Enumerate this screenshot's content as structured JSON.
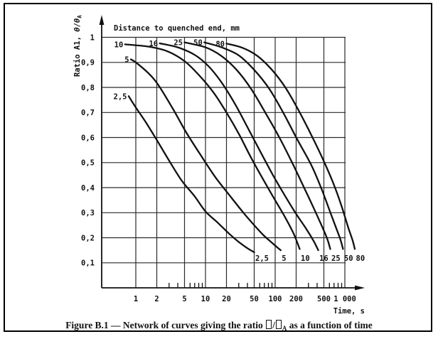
{
  "figure": {
    "caption": {
      "lead": "Figure B.1 — Network of curves giving the ratio",
      "slash": "/",
      "subscript": "A",
      "tail": "as a function of time",
      "missing_glyph": "tofu-box"
    }
  },
  "chart_data": {
    "type": "line",
    "title": "Distance to quenched end, mm",
    "xlabel": "Time, s",
    "ylabel": "Ratio A1, θ/θA",
    "ylabel_parts": {
      "prefix": "Ratio A1, ",
      "theta": "θ",
      "slash": "/",
      "subscript": "A"
    },
    "x_scale": "log",
    "xlim": [
      0.33,
      1000
    ],
    "ylim": [
      0,
      1
    ],
    "grid": true,
    "legend": "labels-on-curves",
    "x_ticks": [
      {
        "value": 1,
        "label": "1"
      },
      {
        "value": 2,
        "label": "2"
      },
      {
        "value": 5,
        "label": "5"
      },
      {
        "value": 10,
        "label": "10"
      },
      {
        "value": 20,
        "label": "20"
      },
      {
        "value": 50,
        "label": "50"
      },
      {
        "value": 100,
        "label": "100"
      },
      {
        "value": 200,
        "label": "200"
      },
      {
        "value": 500,
        "label": "500"
      },
      {
        "value": 1000,
        "label": "1 000"
      }
    ],
    "x_minor_ticks": [
      3,
      4,
      6,
      7,
      8,
      9,
      30,
      40,
      60,
      70,
      80,
      90,
      300,
      400,
      600,
      700,
      800,
      900
    ],
    "y_ticks": [
      {
        "value": 1.0,
        "label": "1"
      },
      {
        "value": 0.9,
        "label": "0,9"
      },
      {
        "value": 0.8,
        "label": "0,8"
      },
      {
        "value": 0.7,
        "label": "0,7"
      },
      {
        "value": 0.6,
        "label": "0,6"
      },
      {
        "value": 0.5,
        "label": "0,5"
      },
      {
        "value": 0.4,
        "label": "0,4"
      },
      {
        "value": 0.3,
        "label": "0,3"
      },
      {
        "value": 0.2,
        "label": "0,2"
      },
      {
        "value": 0.1,
        "label": "0,1"
      }
    ],
    "series": [
      {
        "name": "2,5",
        "distance_mm": 2.5,
        "points": [
          [
            0.79,
            0.765
          ],
          [
            1,
            0.72
          ],
          [
            1.4,
            0.66
          ],
          [
            2,
            0.59
          ],
          [
            2.9,
            0.515
          ],
          [
            4.5,
            0.43
          ],
          [
            7,
            0.365
          ],
          [
            10,
            0.305
          ],
          [
            15,
            0.26
          ],
          [
            22,
            0.215
          ],
          [
            30,
            0.183
          ],
          [
            40,
            0.158
          ],
          [
            50,
            0.142
          ]
        ]
      },
      {
        "name": "5",
        "distance_mm": 5,
        "points": [
          [
            0.85,
            0.912
          ],
          [
            1,
            0.9
          ],
          [
            1.5,
            0.858
          ],
          [
            2.1,
            0.81
          ],
          [
            3.4,
            0.715
          ],
          [
            5.3,
            0.62
          ],
          [
            9,
            0.52
          ],
          [
            14,
            0.44
          ],
          [
            22,
            0.37
          ],
          [
            35,
            0.3
          ],
          [
            50,
            0.25
          ],
          [
            68,
            0.21
          ],
          [
            90,
            0.18
          ],
          [
            120,
            0.15
          ]
        ]
      },
      {
        "name": "10",
        "distance_mm": 10,
        "points": [
          [
            0.7,
            0.972
          ],
          [
            1.5,
            0.963
          ],
          [
            2.8,
            0.945
          ],
          [
            5,
            0.905
          ],
          [
            8,
            0.85
          ],
          [
            13,
            0.78
          ],
          [
            20,
            0.7
          ],
          [
            30,
            0.615
          ],
          [
            44,
            0.525
          ],
          [
            65,
            0.44
          ],
          [
            95,
            0.36
          ],
          [
            140,
            0.28
          ],
          [
            185,
            0.215
          ],
          [
            225,
            0.155
          ]
        ]
      },
      {
        "name": "16",
        "distance_mm": 16,
        "points": [
          [
            2.2,
            0.976
          ],
          [
            4,
            0.96
          ],
          [
            7,
            0.93
          ],
          [
            11,
            0.885
          ],
          [
            17,
            0.82
          ],
          [
            27,
            0.73
          ],
          [
            42,
            0.63
          ],
          [
            65,
            0.53
          ],
          [
            95,
            0.445
          ],
          [
            140,
            0.365
          ],
          [
            200,
            0.295
          ],
          [
            280,
            0.235
          ],
          [
            360,
            0.185
          ],
          [
            415,
            0.15
          ]
        ]
      },
      {
        "name": "25",
        "distance_mm": 25,
        "points": [
          [
            5,
            0.98
          ],
          [
            10,
            0.96
          ],
          [
            17,
            0.925
          ],
          [
            28,
            0.87
          ],
          [
            45,
            0.795
          ],
          [
            72,
            0.7
          ],
          [
            115,
            0.6
          ],
          [
            175,
            0.5
          ],
          [
            255,
            0.405
          ],
          [
            355,
            0.32
          ],
          [
            470,
            0.245
          ],
          [
            560,
            0.195
          ],
          [
            618,
            0.155
          ]
        ]
      },
      {
        "name": "50",
        "distance_mm": 50,
        "points": [
          [
            9.6,
            0.98
          ],
          [
            17,
            0.96
          ],
          [
            30,
            0.928
          ],
          [
            50,
            0.87
          ],
          [
            82,
            0.795
          ],
          [
            130,
            0.7
          ],
          [
            205,
            0.595
          ],
          [
            330,
            0.49
          ],
          [
            470,
            0.39
          ],
          [
            620,
            0.3
          ],
          [
            760,
            0.235
          ],
          [
            870,
            0.19
          ],
          [
            940,
            0.155
          ]
        ]
      },
      {
        "name": "80",
        "distance_mm": 80,
        "points": [
          [
            20,
            0.975
          ],
          [
            34,
            0.958
          ],
          [
            56,
            0.925
          ],
          [
            90,
            0.87
          ],
          [
            140,
            0.8
          ],
          [
            215,
            0.71
          ],
          [
            330,
            0.61
          ],
          [
            500,
            0.505
          ],
          [
            700,
            0.41
          ],
          [
            900,
            0.325
          ],
          [
            1120,
            0.24
          ],
          [
            1290,
            0.19
          ],
          [
            1390,
            0.155
          ]
        ]
      }
    ],
    "colors": {
      "ink": "#111111",
      "grid": "#2a2a2a",
      "background": "#ffffff"
    }
  }
}
